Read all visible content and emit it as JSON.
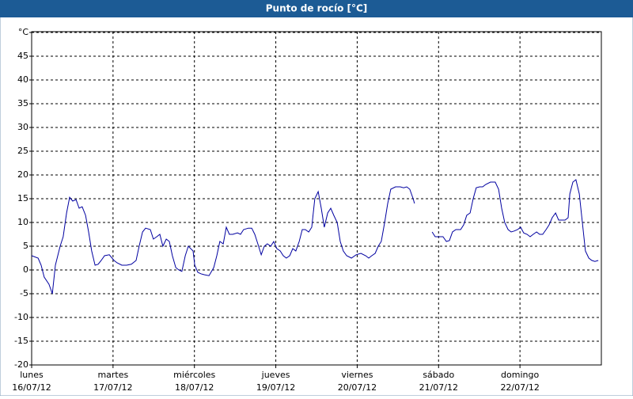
{
  "chart_data": {
    "type": "line",
    "title": "Punto de rocío [°C]",
    "xlim": [
      0,
      168
    ],
    "xticks": [
      {
        "value": 0,
        "label": "lunes"
      },
      {
        "value": 24,
        "label": "martes"
      },
      {
        "value": 48,
        "label": "miércoles"
      },
      {
        "value": 72,
        "label": "jueves"
      },
      {
        "value": 96,
        "label": "viernes"
      },
      {
        "value": 120,
        "label": "sábado"
      },
      {
        "value": 144,
        "label": "domingo"
      }
    ],
    "xtick_dates": [
      "16/07/12",
      "17/07/12",
      "18/07/12",
      "19/07/12",
      "20/07/12",
      "21/07/12",
      "22/07/12"
    ],
    "ylim": [
      -20,
      50
    ],
    "yticks": [
      -20,
      -15,
      -10,
      -5,
      0,
      5,
      10,
      15,
      20,
      25,
      30,
      35,
      40,
      45,
      {
        "value": 50,
        "label": "°C"
      }
    ],
    "grid": true,
    "series": [
      {
        "color": "#0000a0",
        "x": [
          0,
          1.9,
          2.8,
          3.7,
          5.1,
          6.1,
          7,
          8.4,
          9.3,
          10.3,
          11.2,
          12.1,
          13.1,
          14,
          14.9,
          15.9,
          16.8,
          17.7,
          18.7,
          19.6,
          20.5,
          21.5,
          22.9,
          24.3,
          25.2,
          26.6,
          28,
          29.4,
          30.8,
          31.7,
          32.7,
          33.6,
          35,
          35.9,
          36.9,
          37.8,
          38.7,
          39.7,
          40.6,
          41.5,
          42.5,
          43.4,
          44.3,
          45.3,
          46.2,
          47.6,
          48.1,
          49,
          49.9,
          50.9,
          52.3,
          53.7,
          54.6,
          55.5,
          56.5,
          57.4,
          58.3,
          59.3,
          60.7,
          61.6,
          62.5,
          63.9,
          64.9,
          65.8,
          66.7,
          67.7,
          68.6,
          69.5,
          70.5,
          71.4,
          72.3,
          73.3,
          74.2,
          75.1,
          76.1,
          77,
          77.9,
          78.9,
          79.8,
          80.7,
          81.7,
          82.6,
          83.5,
          84.5,
          85.4,
          86.3,
          87.3,
          88.2,
          89.1,
          90.1,
          91,
          91.9,
          92.9,
          94.3,
          95.7,
          97.1,
          98.5,
          99.4,
          100.3,
          101.3,
          102.2,
          103.1,
          104.1,
          105,
          105.9,
          107.3,
          108.7,
          109.7,
          110.6,
          111.5,
          112.5,
          112.9,
          115.5,
          118.1,
          119,
          120.4,
          121.3,
          122.3,
          123.2,
          124.1,
          125.1,
          126.5,
          127.4,
          128.3,
          129.3,
          130.2,
          131.1,
          132.1,
          133,
          133.9,
          135.3,
          136.7,
          137.7,
          138.6,
          139.5,
          140.5,
          141.4,
          142.3,
          143.3,
          144.2,
          145.1,
          146.1,
          147,
          147.9,
          148.9,
          149.8,
          150.7,
          151.7,
          152.6,
          153.5,
          154.5,
          155.4,
          156.3,
          157.3,
          158.2,
          158.7,
          159.6,
          160.5,
          161.5,
          162.4,
          163.3,
          164.3,
          165.2,
          166.1,
          167.1
        ],
        "values": [
          3,
          2.5,
          1,
          -1.5,
          -3,
          -5,
          1,
          5,
          7,
          12,
          15.3,
          14.5,
          14.8,
          13,
          13.3,
          11.5,
          8,
          4,
          1,
          1.2,
          2,
          3,
          3.2,
          2,
          1.5,
          1,
          1,
          1.2,
          2,
          5,
          8,
          8.8,
          8.5,
          6.5,
          7,
          7.5,
          5,
          6.5,
          6,
          3,
          0.5,
          0,
          -0.3,
          3,
          5,
          4,
          1,
          -0.5,
          -0.8,
          -1,
          -1.2,
          0.5,
          3,
          6,
          5.5,
          9,
          7.5,
          7.5,
          7.8,
          7.5,
          8.5,
          8.8,
          8.8,
          7.5,
          5.5,
          3.2,
          5,
          5.5,
          5,
          6,
          4.5,
          4,
          3,
          2.5,
          3,
          4.5,
          4,
          6,
          8.5,
          8.5,
          8,
          9,
          15,
          16.5,
          13,
          9,
          12,
          13,
          11.5,
          10,
          6,
          4,
          3,
          2.5,
          3.2,
          3.5,
          3,
          2.5,
          3,
          3.5,
          5,
          6,
          10,
          14,
          17,
          17.5,
          17.5,
          17.3,
          17.5,
          17,
          15,
          14,
          null,
          8,
          7,
          7,
          7,
          6,
          6.2,
          8,
          8.5,
          8.5,
          9.5,
          11.5,
          12,
          15,
          17.3,
          17.5,
          17.5,
          18,
          18.5,
          18.5,
          17,
          13,
          10,
          8.5,
          8,
          8.2,
          8.5,
          9,
          7.8,
          7.5,
          7,
          7.5,
          8,
          7.5,
          7.5,
          8.5,
          9.5,
          11,
          12,
          10.5,
          10.5,
          10.5,
          11,
          16,
          18.5,
          19,
          16,
          10,
          4,
          2.5,
          2,
          1.8,
          2
        ]
      }
    ]
  }
}
